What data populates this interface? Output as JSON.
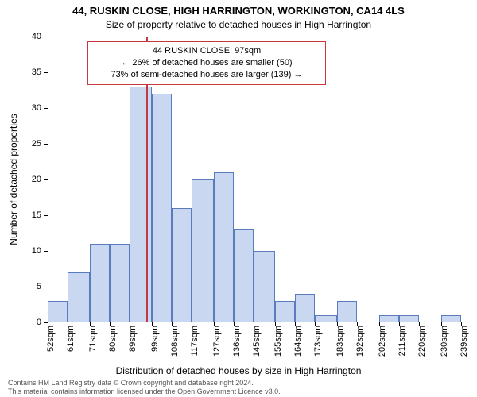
{
  "title": "44, RUSKIN CLOSE, HIGH HARRINGTON, WORKINGTON, CA14 4LS",
  "subtitle": "Size of property relative to detached houses in High Harrington",
  "ylabel": "Number of detached properties",
  "xlabel": "Distribution of detached houses by size in High Harrington",
  "footer_line1": "Contains HM Land Registry data © Crown copyright and database right 2024.",
  "footer_line2": "This material contains information licensed under the Open Government Licence v3.0.",
  "chart": {
    "type": "histogram",
    "background_color": "#ffffff",
    "bar_fill": "#c9d7f0",
    "bar_border": "#5b7bbf",
    "bar_border_width": 1,
    "ref_line_color": "#c4383e",
    "ref_line_value": 97,
    "callout": {
      "line1": "44 RUSKIN CLOSE: 97sqm",
      "line2": "← 26% of detached houses are smaller (50)",
      "line3": "73% of semi-detached houses are larger (139) →",
      "border_color": "#c4383e",
      "border_width": 1,
      "font_size": 11
    },
    "y_axis": {
      "min": 0,
      "max": 40,
      "tick_step": 5,
      "ticks": [
        0,
        5,
        10,
        15,
        20,
        25,
        30,
        35,
        40
      ],
      "label_fontsize": 11
    },
    "x_axis": {
      "tick_labels": [
        "52sqm",
        "61sqm",
        "71sqm",
        "80sqm",
        "89sqm",
        "99sqm",
        "108sqm",
        "117sqm",
        "127sqm",
        "136sqm",
        "145sqm",
        "155sqm",
        "164sqm",
        "173sqm",
        "183sqm",
        "192sqm",
        "202sqm",
        "211sqm",
        "220sqm",
        "230sqm",
        "239sqm"
      ],
      "tick_values": [
        52,
        61,
        71,
        80,
        89,
        99,
        108,
        117,
        127,
        136,
        145,
        155,
        164,
        173,
        183,
        192,
        202,
        211,
        220,
        230,
        239
      ],
      "min": 52,
      "max": 239,
      "label_fontsize": 11
    },
    "bins": [
      {
        "start": 52,
        "end": 61,
        "count": 3
      },
      {
        "start": 61,
        "end": 71,
        "count": 7
      },
      {
        "start": 71,
        "end": 80,
        "count": 11
      },
      {
        "start": 80,
        "end": 89,
        "count": 11
      },
      {
        "start": 89,
        "end": 99,
        "count": 33
      },
      {
        "start": 99,
        "end": 108,
        "count": 32
      },
      {
        "start": 108,
        "end": 117,
        "count": 16
      },
      {
        "start": 117,
        "end": 127,
        "count": 20
      },
      {
        "start": 127,
        "end": 136,
        "count": 21
      },
      {
        "start": 136,
        "end": 145,
        "count": 13
      },
      {
        "start": 145,
        "end": 155,
        "count": 10
      },
      {
        "start": 155,
        "end": 164,
        "count": 3
      },
      {
        "start": 164,
        "end": 173,
        "count": 4
      },
      {
        "start": 173,
        "end": 183,
        "count": 1
      },
      {
        "start": 183,
        "end": 192,
        "count": 3
      },
      {
        "start": 192,
        "end": 202,
        "count": 0
      },
      {
        "start": 202,
        "end": 211,
        "count": 1
      },
      {
        "start": 211,
        "end": 220,
        "count": 1
      },
      {
        "start": 220,
        "end": 230,
        "count": 0
      },
      {
        "start": 230,
        "end": 239,
        "count": 1
      }
    ]
  }
}
